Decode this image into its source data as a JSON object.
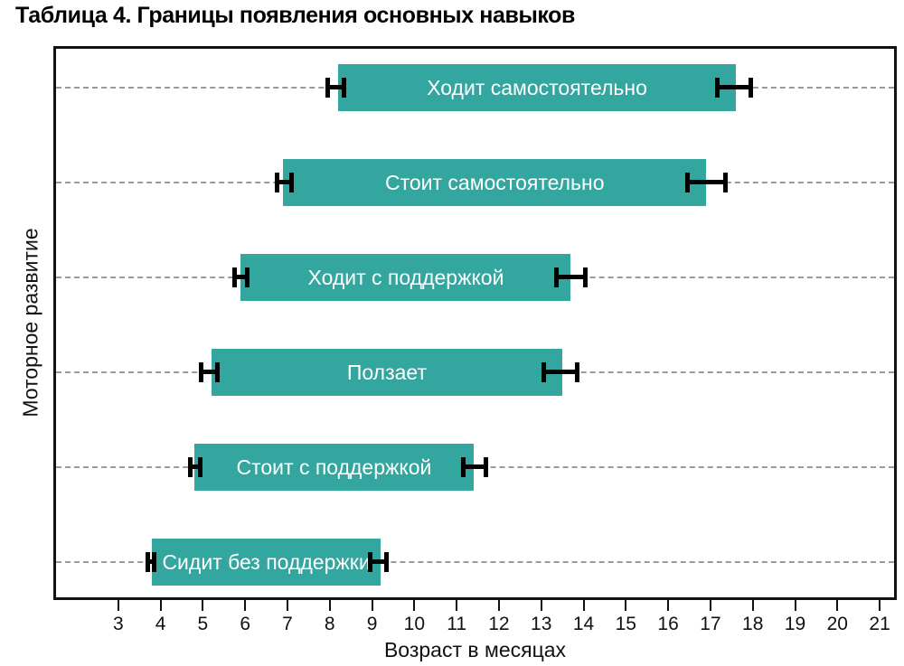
{
  "chart_data": {
    "type": "bar",
    "subtype": "horizontal-range-bars-with-error-whiskers",
    "title": "Таблица 4. Границы появления основных навыков",
    "xlabel": "Возраст в месяцах",
    "ylabel": "Моторное развитие",
    "xlim": [
      1.53,
      21.34
    ],
    "xticks": [
      3,
      4,
      5,
      6,
      7,
      8,
      9,
      10,
      11,
      12,
      13,
      14,
      15,
      16,
      17,
      18,
      19,
      20,
      21
    ],
    "grid": "horizontal dashed gridline through each bar center",
    "legend": "none",
    "series": [
      {
        "label": "Ходит самостоятельно",
        "start": 8.2,
        "end": 17.6,
        "start_whisker": [
          7.9,
          8.4
        ],
        "end_whisker": [
          17.1,
          18.0
        ]
      },
      {
        "label": "Стоит самостоятельно",
        "start": 6.9,
        "end": 16.9,
        "start_whisker": [
          6.7,
          7.15
        ],
        "end_whisker": [
          16.4,
          17.4
        ]
      },
      {
        "label": "Ходит с поддержкой",
        "start": 5.9,
        "end": 13.7,
        "start_whisker": [
          5.7,
          6.1
        ],
        "end_whisker": [
          13.3,
          14.1
        ]
      },
      {
        "label": "Ползает",
        "start": 5.2,
        "end": 13.5,
        "start_whisker": [
          4.9,
          5.4
        ],
        "end_whisker": [
          13.0,
          13.9
        ]
      },
      {
        "label": "Стоит с поддержкой",
        "start": 4.8,
        "end": 11.4,
        "start_whisker": [
          4.65,
          5.0
        ],
        "end_whisker": [
          11.1,
          11.75
        ]
      },
      {
        "label": "Сидит без поддержки",
        "start": 3.8,
        "end": 9.2,
        "start_whisker": [
          3.65,
          3.9
        ],
        "end_whisker": [
          8.9,
          9.4
        ]
      }
    ],
    "colors": {
      "bar": "#32a69f",
      "bar_text": "#ffffff",
      "whisker": "#000000",
      "grid": "#9a9a9a",
      "axis": "#111111",
      "text": "#000000",
      "background": "#ffffff"
    }
  }
}
